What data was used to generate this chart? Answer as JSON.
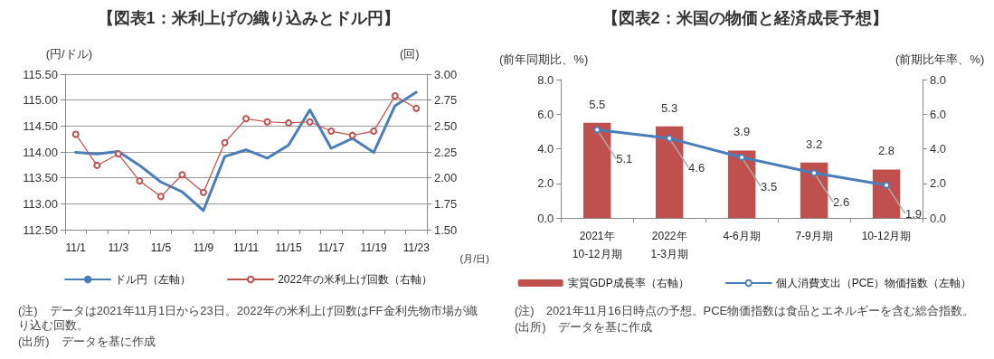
{
  "chart_data": [
    {
      "type": "line",
      "title": "【図表1：米利上げの織り込みとドル円】",
      "ylabel": "(円/ドル)",
      "y2label": "(回)",
      "xlabel": "(月/日)",
      "categories": [
        "11/1",
        null,
        "11/3",
        null,
        "11/5",
        null,
        "11/9",
        null,
        "11/11",
        null,
        "11/15",
        null,
        "11/17",
        null,
        "11/19",
        null,
        "11/23"
      ],
      "series": [
        {
          "name": "ドル円（左軸）",
          "color": "#4a7ebb",
          "marker": "none",
          "values": [
            113.99,
            113.96,
            114.01,
            113.74,
            113.42,
            113.23,
            112.87,
            113.91,
            114.04,
            113.88,
            114.13,
            114.81,
            114.07,
            114.26,
            113.99,
            114.89,
            115.15
          ]
        },
        {
          "name": "2022年の米利上げ回数（右軸）",
          "color": "#c0504d",
          "marker": "circle",
          "axis": "y2",
          "values": [
            2.42,
            2.12,
            2.23,
            1.97,
            1.82,
            2.03,
            1.86,
            2.34,
            2.57,
            2.54,
            2.53,
            2.54,
            2.45,
            2.41,
            2.45,
            2.79,
            2.67
          ]
        }
      ],
      "ylim": [
        112.5,
        115.5
      ],
      "yticks": [
        {
          "value": 112.5,
          "label": "112.50"
        },
        {
          "value": 113,
          "label": "113.00"
        },
        {
          "value": 113.5,
          "label": "113.50"
        },
        {
          "value": 114,
          "label": "114.00"
        },
        {
          "value": 114.5,
          "label": "114.50"
        },
        {
          "value": 115,
          "label": "115.00"
        },
        {
          "value": 115.5,
          "label": "115.50"
        }
      ],
      "y2lim": [
        1.5,
        3
      ],
      "y2ticks": [
        {
          "value": 1.5,
          "label": "1.50"
        },
        {
          "value": 1.75,
          "label": "1.75"
        },
        {
          "value": 2,
          "label": "2.00"
        },
        {
          "value": 2.25,
          "label": "2.25"
        },
        {
          "value": 2.5,
          "label": "2.50"
        },
        {
          "value": 2.75,
          "label": "2.75"
        },
        {
          "value": 3,
          "label": "3.00"
        }
      ],
      "grid": "y",
      "legend": "bottom",
      "annotations": [
        "(注)　データは2021年11月1日から23日。2022年の米利上げ回数はFF金利先物市場が織り込む回数。",
        "(出所)　データを基に作成"
      ]
    },
    {
      "type": "bar",
      "title": "【図表2：米国の物価と経済成長予想】",
      "ylabel": "(前年同期比、%)",
      "y2label": "(前期比年率、%)",
      "categories": [
        "2021年\n10-12月期",
        "2022年\n1-3月期",
        "4-6月期",
        "7-9月期",
        "10-12月期"
      ],
      "series": [
        {
          "name": "実質GDP成長率（右軸）",
          "type": "bar",
          "axis": "y2",
          "color": "#c0504d",
          "values": [
            5.5,
            5.3,
            3.9,
            3.2,
            2.8
          ]
        },
        {
          "name": "個人消費支出（PCE）物価指数（左軸）",
          "type": "line",
          "marker": "circle",
          "color": "#4a7ebb",
          "values": [
            5.1,
            4.6,
            3.5,
            2.6,
            1.9
          ]
        }
      ],
      "ylim": [
        0,
        8
      ],
      "yticks": [
        {
          "value": 0,
          "label": "0.0"
        },
        {
          "value": 2,
          "label": "2.0"
        },
        {
          "value": 4,
          "label": "4.0"
        },
        {
          "value": 6,
          "label": "6.0"
        },
        {
          "value": 8,
          "label": "8.0"
        }
      ],
      "y2lim": [
        0,
        8
      ],
      "y2ticks": [
        {
          "value": 0,
          "label": "0.0"
        },
        {
          "value": 2,
          "label": "2.0"
        },
        {
          "value": 4,
          "label": "4.0"
        },
        {
          "value": 6,
          "label": "6.0"
        },
        {
          "value": 8,
          "label": "8.0"
        }
      ],
      "grid": false,
      "legend": "bottom",
      "data_labels": true,
      "annotations": [
        "(注)　2021年11月16日時点の予想。PCE物価指数は食品とエネルギーを含む総合指数。",
        "(出所)　データを基に作成"
      ]
    }
  ]
}
